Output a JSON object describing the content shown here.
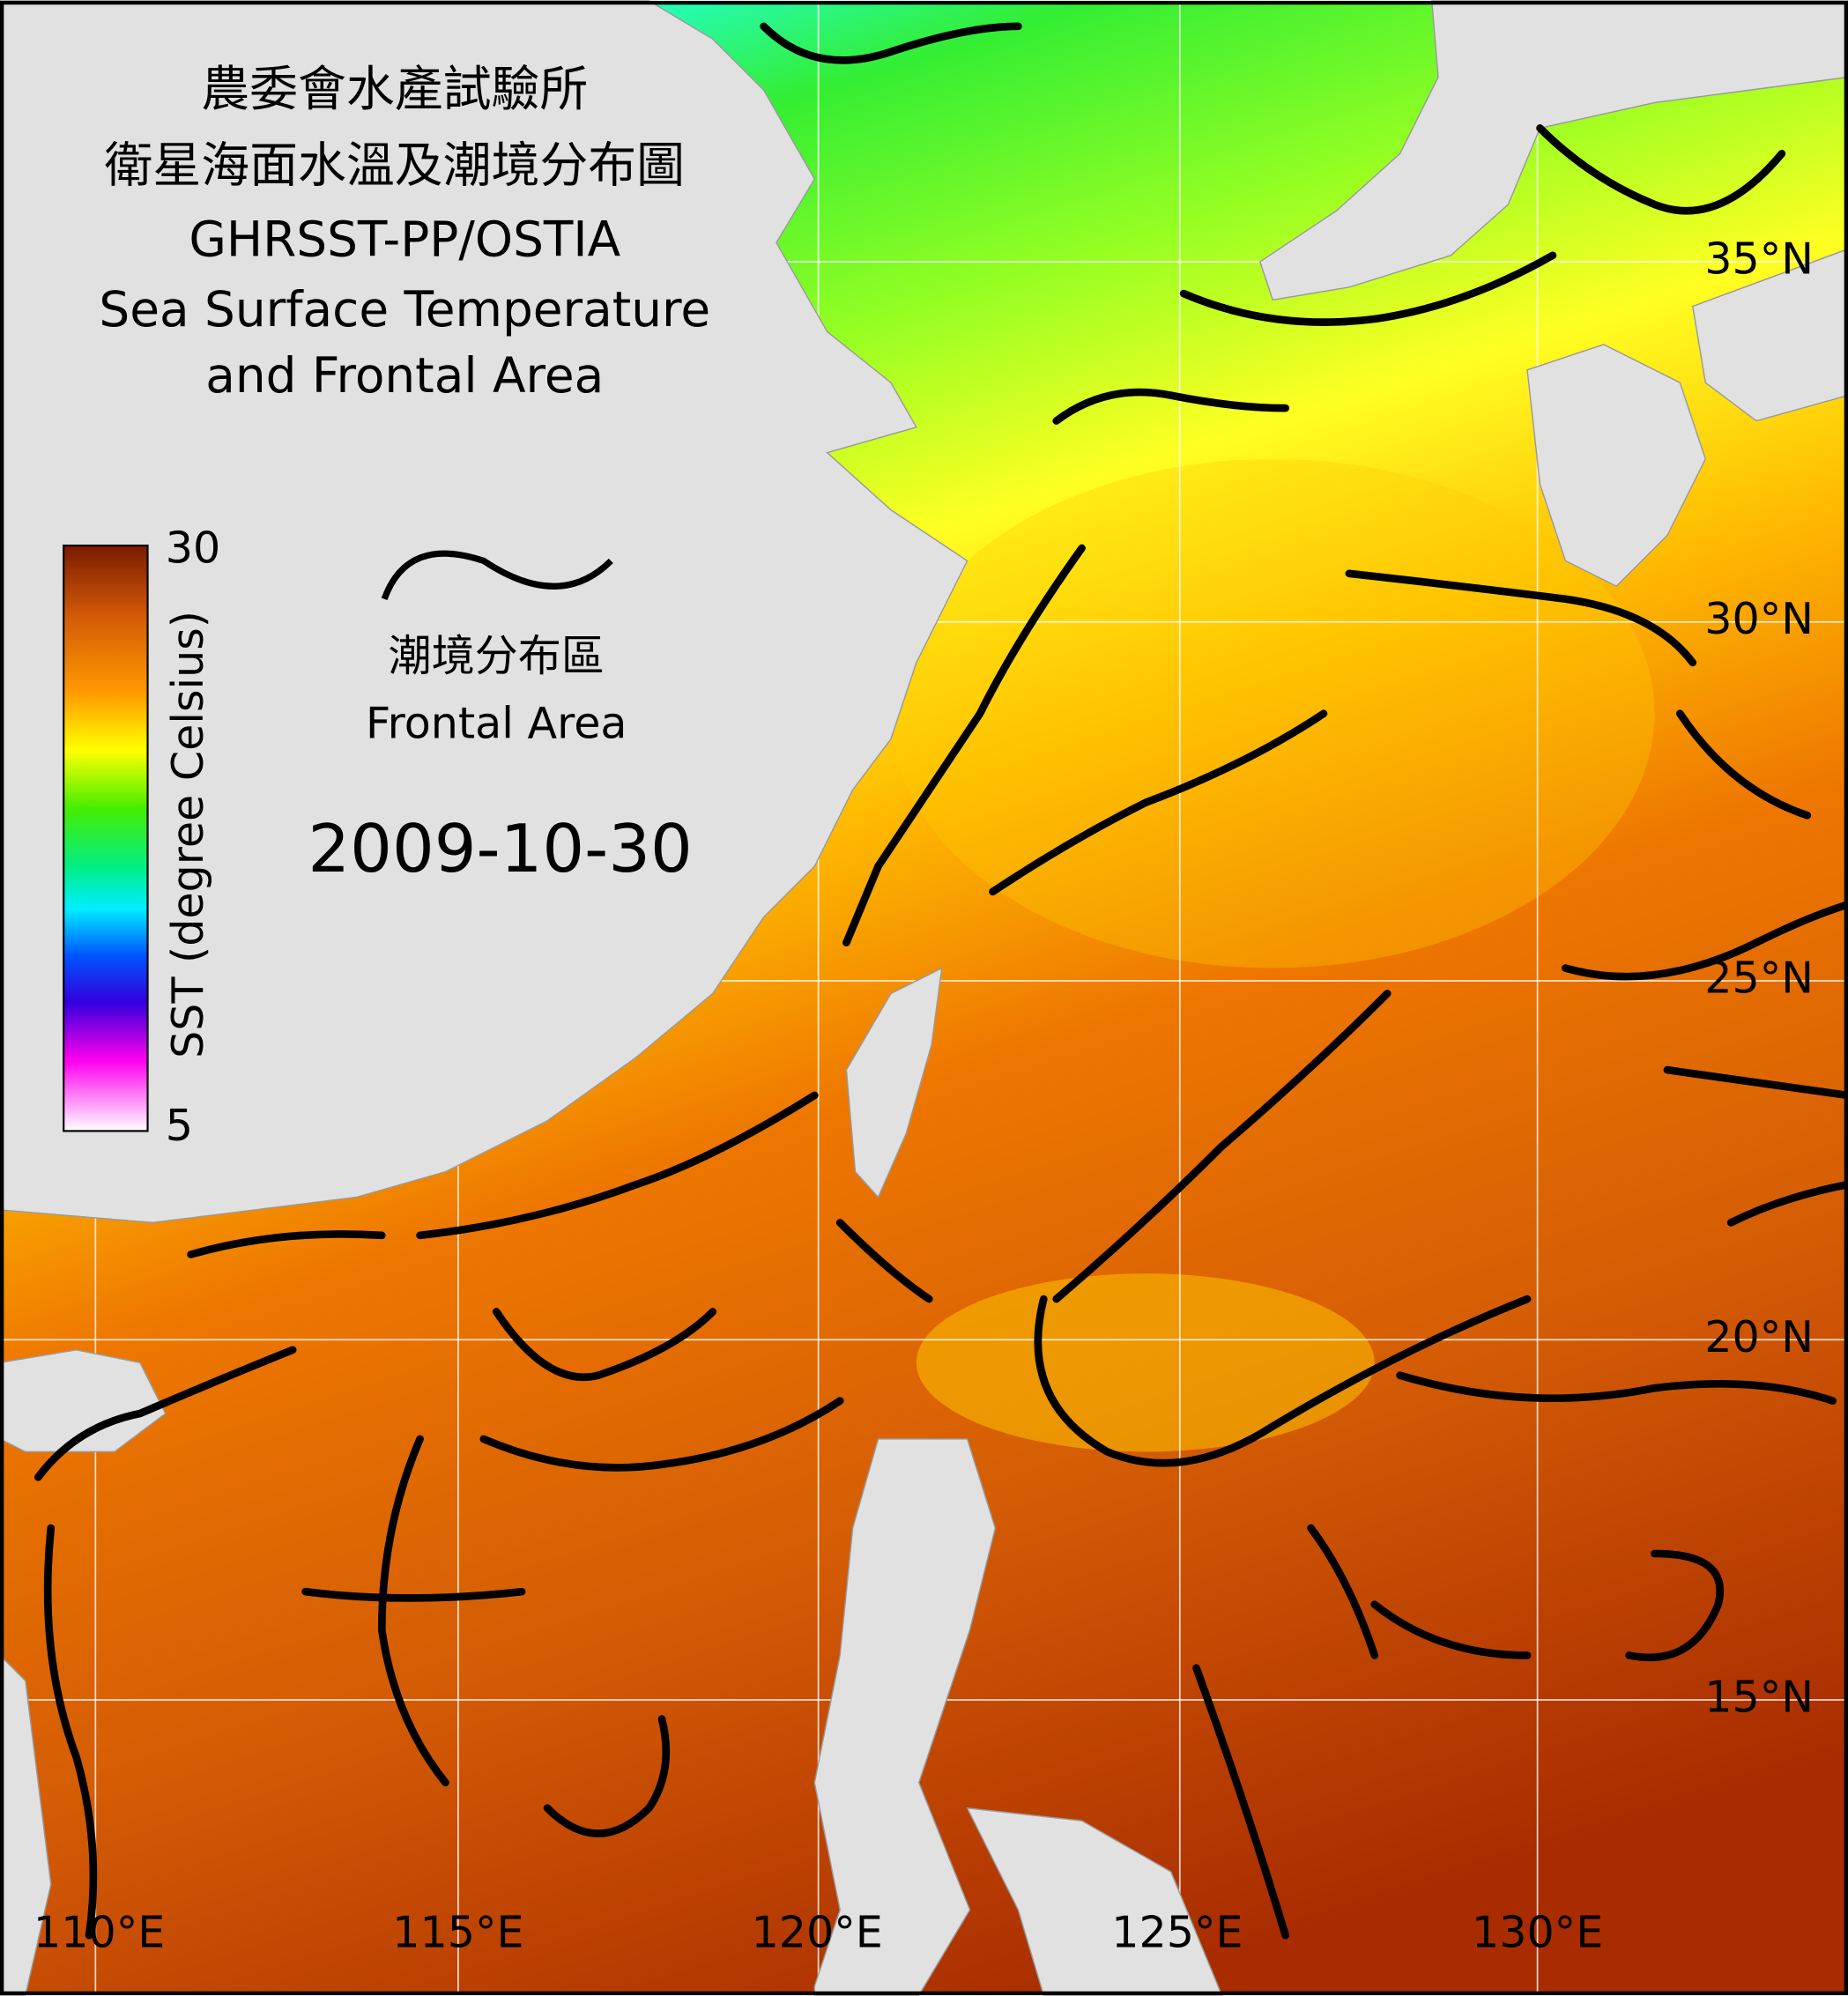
{
  "title_zh_1": "農委會水產試驗所",
  "title_zh_2": "衛星海面水溫及潮境分布圖",
  "title_en_1": "GHRSST-PP/OSTIA",
  "title_en_2": "Sea Surface Temperature",
  "title_en_3": "and Frontal Area",
  "colorbar": {
    "label": "SST (degree Celsius)",
    "max": 30,
    "min": 5
  },
  "legend": {
    "label_zh": "潮境分布區",
    "label_en": "Frontal Area"
  },
  "date": "2009-10-30",
  "lat_labels": [
    "35°N",
    "30°N",
    "25°N",
    "20°N",
    "15°N"
  ],
  "lon_labels": [
    "110°E",
    "115°E",
    "120°E",
    "125°E",
    "130°E"
  ]
}
